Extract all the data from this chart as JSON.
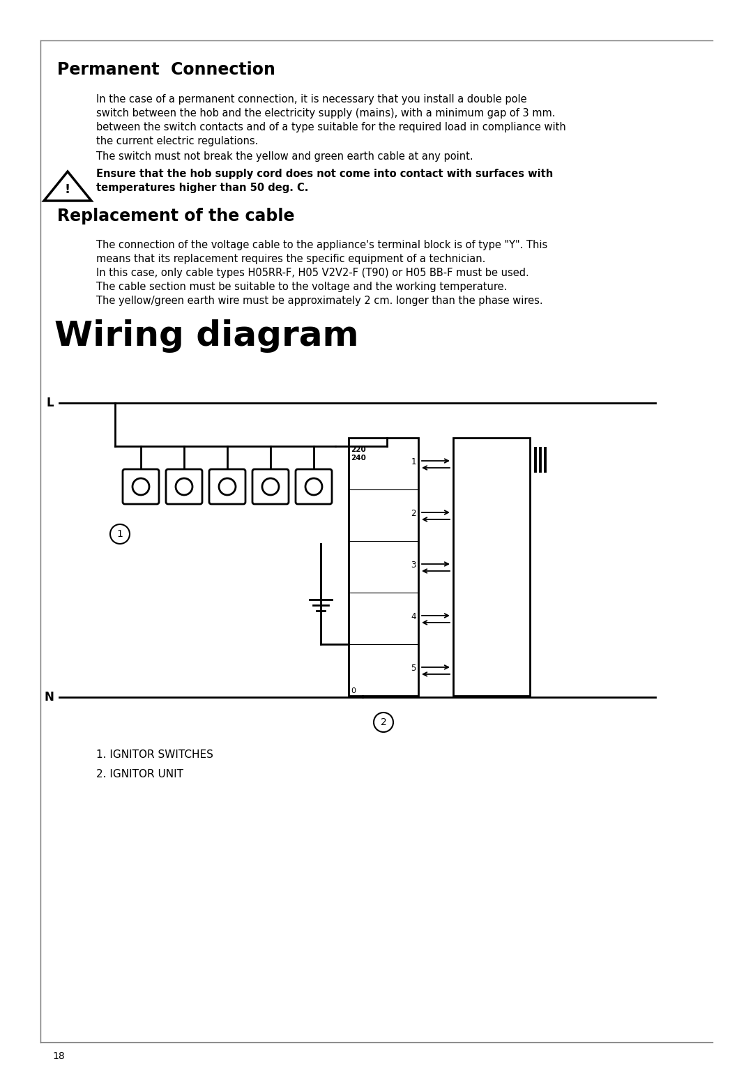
{
  "bg_color": "#ffffff",
  "title_permanent": "Permanent  Connection",
  "title_replacement": "Replacement of the cable",
  "title_wiring": "Wiring diagram",
  "text_permanent_1": "In the case of a permanent connection, it is necessary that you install a double pole",
  "text_permanent_2": "switch between the hob and the electricity supply (mains), with a minimum gap of 3 mm.",
  "text_permanent_3": "between the switch contacts and of a type suitable for the required load in compliance with",
  "text_permanent_4": "the current electric regulations.",
  "text_permanent_5": "The switch must not break the yellow and green earth cable at any point.",
  "text_warning_1": "Ensure that the hob supply cord does not come into contact with surfaces with",
  "text_warning_2": "temperatures higher than 50 deg. C.",
  "text_replacement_1": "The connection of the voltage cable to the appliance's terminal block is of type \"Y\". This",
  "text_replacement_2": "means that its replacement requires the specific equipment of a technician.",
  "text_replacement_3": "In this case, only cable types H05RR-F, H05 V2V2-F (T90) or H05 BB-F must be used.",
  "text_replacement_4": "The cable section must be suitable to the voltage and the working temperature.",
  "text_replacement_5": "The yellow/green earth wire must be approximately 2 cm. longer than the phase wires.",
  "legend_1": "1. IGNITOR SWITCHES",
  "legend_2": "2. IGNITOR UNIT",
  "page_num": "18",
  "text_color": "#000000"
}
